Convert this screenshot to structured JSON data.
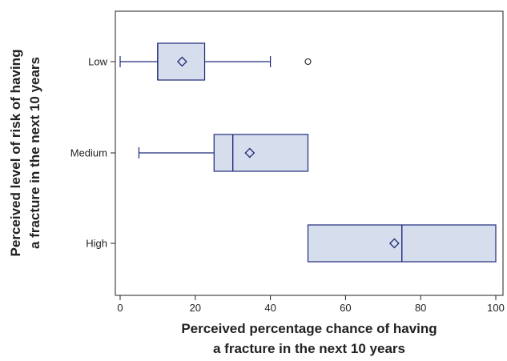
{
  "chart_data": {
    "type": "boxplot",
    "orientation": "horizontal",
    "xlabel_lines": [
      "Perceived percentage chance of having",
      "a fracture in the next 10 years"
    ],
    "ylabel_lines": [
      "Perceived level of risk of having",
      "a fracture in the next 10 years"
    ],
    "xlim": [
      0,
      100
    ],
    "xticks": [
      0,
      20,
      40,
      60,
      80,
      100
    ],
    "categories": [
      "Low",
      "Medium",
      "High"
    ],
    "boxes": [
      {
        "category": "Low",
        "whisker_low": 0,
        "q1": 10,
        "median": 10,
        "q3": 22.5,
        "whisker_high": 40,
        "mean": 16.5,
        "outliers": [
          50
        ]
      },
      {
        "category": "Medium",
        "whisker_low": 5,
        "q1": 25,
        "median": 30,
        "q3": 50,
        "whisker_high": 50,
        "mean": 34.5,
        "outliers": []
      },
      {
        "category": "High",
        "whisker_low": 50,
        "q1": 50,
        "median": 75,
        "q3": 100,
        "whisker_high": 100,
        "mean": 73,
        "outliers": []
      }
    ],
    "grid": false,
    "legend": "none",
    "colors": {
      "box_fill": "#d6deed",
      "box_stroke": "#1f2a7a",
      "frame": "#222222",
      "text": "#222222"
    }
  }
}
